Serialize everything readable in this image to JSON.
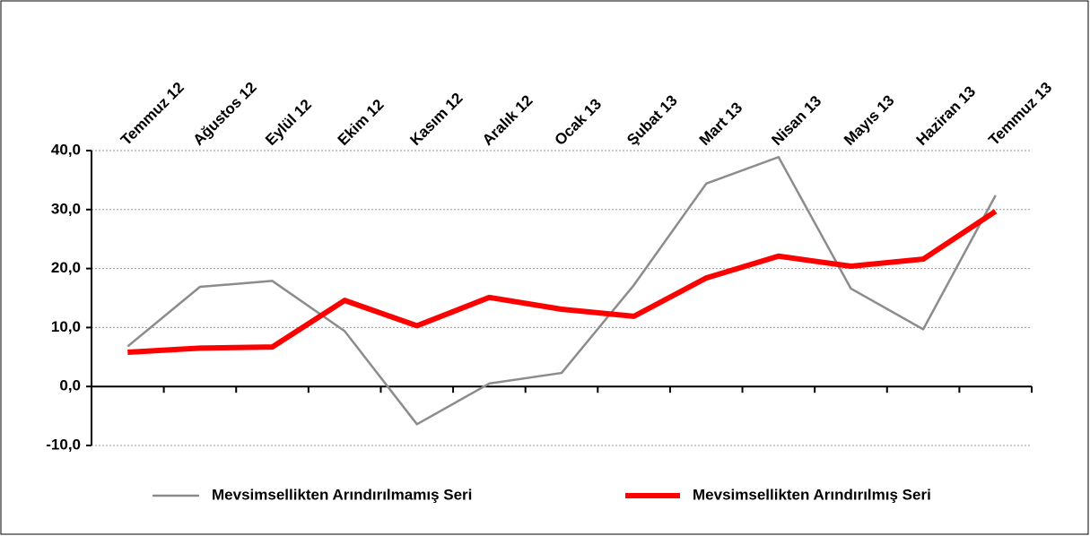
{
  "chart_data": {
    "type": "line",
    "categories": [
      "Temmuz 12",
      "Ağustos 12",
      "Eylül 12",
      "Ekim 12",
      "Kasım 12",
      "Aralık 12",
      "Ocak 13",
      "Şubat 13",
      "Mart 13",
      "Nisan 13",
      "Mayıs 13",
      "Haziran 13",
      "Temmuz 13"
    ],
    "series": [
      {
        "name": "Mevsimsellikten Arındırılmamış Seri",
        "color": "#8c8c8c",
        "values": [
          6.8,
          16.9,
          17.9,
          9.4,
          -6.4,
          0.5,
          2.3,
          17.2,
          34.4,
          38.9,
          16.6,
          9.7,
          32.4
        ]
      },
      {
        "name": "Mevsimsellikten Arındırılmış Seri",
        "color": "#ff0000",
        "values": [
          5.8,
          6.5,
          6.7,
          14.6,
          10.3,
          15.1,
          13.1,
          11.9,
          18.4,
          22.1,
          20.4,
          21.6,
          29.7
        ]
      }
    ],
    "ylim": [
      -10,
      40
    ],
    "yticks": [
      {
        "value": -10,
        "label": "-10,0"
      },
      {
        "value": 0,
        "label": "0,0"
      },
      {
        "value": 10,
        "label": "10,0"
      },
      {
        "value": 20,
        "label": "20,0"
      },
      {
        "value": 30,
        "label": "30,0"
      },
      {
        "value": 40,
        "label": "40,0"
      }
    ],
    "grid": true,
    "legend": "bottom"
  }
}
